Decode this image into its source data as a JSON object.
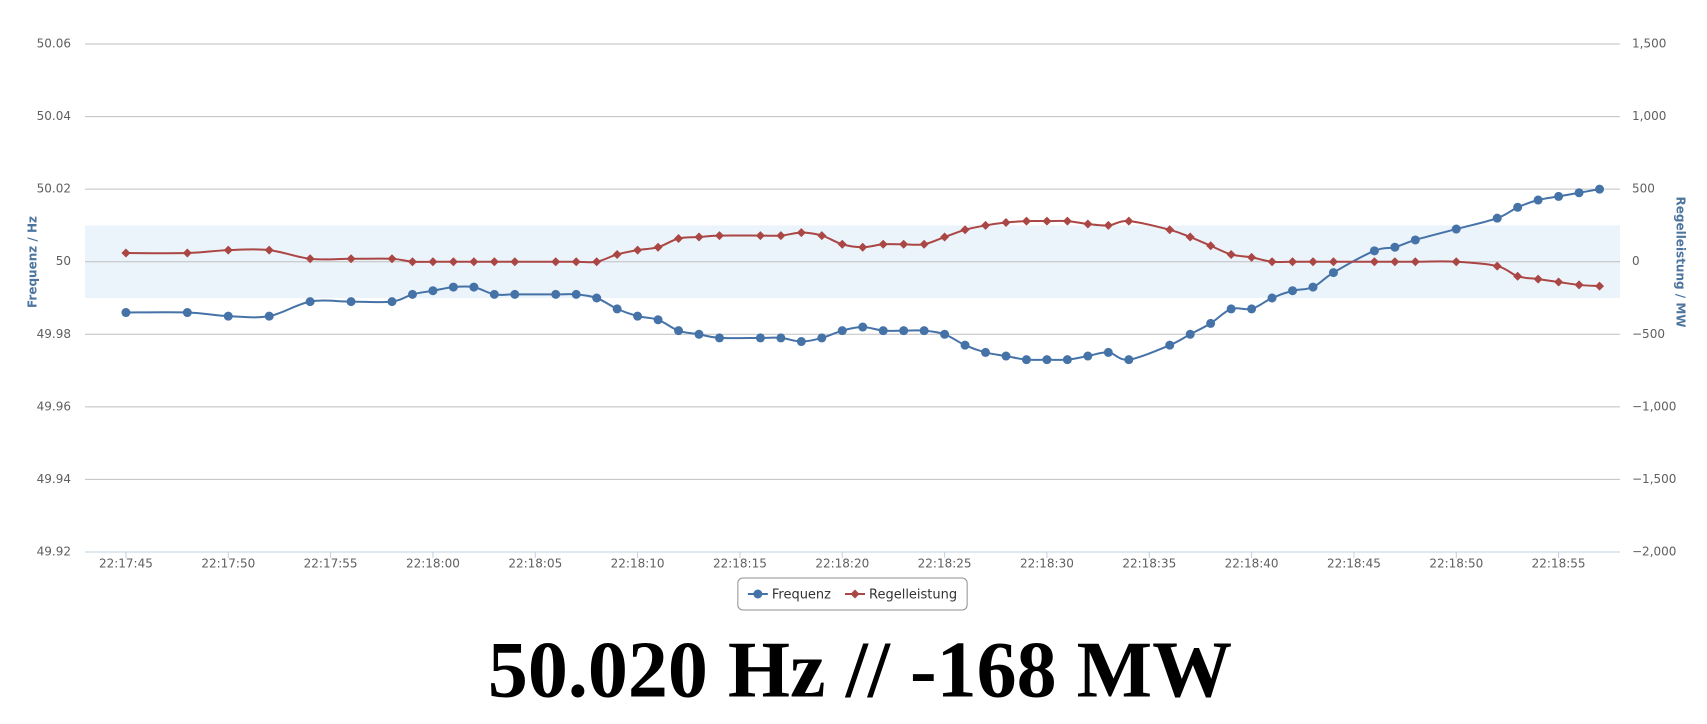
{
  "chart_data": {
    "type": "line",
    "title": "50.020 Hz // -168 MW",
    "y_label": "Frequenz / Hz",
    "y2_label": "Regelleistung / MW",
    "x": [
      "22:17:45",
      "22:17:48",
      "22:17:50",
      "22:17:52",
      "22:17:54",
      "22:17:56",
      "22:17:58",
      "22:17:59",
      "22:18:00",
      "22:18:01",
      "22:18:02",
      "22:18:03",
      "22:18:04",
      "22:18:06",
      "22:18:07",
      "22:18:08",
      "22:18:09",
      "22:18:10",
      "22:18:11",
      "22:18:12",
      "22:18:13",
      "22:18:14",
      "22:18:16",
      "22:18:17",
      "22:18:18",
      "22:18:19",
      "22:18:20",
      "22:18:21",
      "22:18:22",
      "22:18:23",
      "22:18:24",
      "22:18:25",
      "22:18:26",
      "22:18:27",
      "22:18:28",
      "22:18:29",
      "22:18:30",
      "22:18:31",
      "22:18:32",
      "22:18:33",
      "22:18:34",
      "22:18:36",
      "22:18:37",
      "22:18:38",
      "22:18:39",
      "22:18:40",
      "22:18:41",
      "22:18:42",
      "22:18:43",
      "22:18:44",
      "22:18:46",
      "22:18:47",
      "22:18:48",
      "22:18:50",
      "22:18:52",
      "22:18:53",
      "22:18:54",
      "22:18:55",
      "22:18:56",
      "22:18:57"
    ],
    "series": [
      {
        "name": "Frequenz",
        "color": "#4572a7",
        "marker": "circle",
        "values": [
          49.986,
          49.986,
          49.985,
          49.985,
          49.989,
          49.989,
          49.989,
          49.991,
          49.992,
          49.993,
          49.993,
          49.991,
          49.991,
          49.991,
          49.991,
          49.99,
          49.987,
          49.985,
          49.984,
          49.981,
          49.98,
          49.979,
          49.979,
          49.979,
          49.978,
          49.979,
          49.981,
          49.982,
          49.981,
          49.981,
          49.981,
          49.98,
          49.977,
          49.975,
          49.974,
          49.973,
          49.973,
          49.973,
          49.974,
          49.975,
          49.973,
          49.977,
          49.98,
          49.983,
          49.987,
          49.987,
          49.99,
          49.992,
          49.993,
          49.997,
          50.003,
          50.004,
          50.006,
          50.009,
          50.012,
          50.015,
          50.017,
          50.018,
          50.019,
          50.02
        ]
      },
      {
        "name": "Regelleistung",
        "color": "#aa4643",
        "marker": "diamond",
        "axis": "y2",
        "values": [
          60,
          60,
          80,
          80,
          20,
          20,
          20,
          0,
          0,
          0,
          0,
          0,
          0,
          0,
          0,
          0,
          50,
          80,
          100,
          160,
          170,
          180,
          180,
          180,
          200,
          180,
          120,
          100,
          120,
          120,
          120,
          170,
          220,
          250,
          270,
          280,
          280,
          280,
          260,
          250,
          280,
          220,
          170,
          110,
          50,
          30,
          0,
          0,
          0,
          0,
          0,
          0,
          0,
          0,
          -30,
          -100,
          -120,
          -140,
          -160,
          -168
        ]
      }
    ],
    "xlim": [
      "22:17:43",
      "22:18:58"
    ],
    "xticks": [
      "22:17:45",
      "22:17:50",
      "22:17:55",
      "22:18:00",
      "22:18:05",
      "22:18:10",
      "22:18:15",
      "22:18:20",
      "22:18:25",
      "22:18:30",
      "22:18:35",
      "22:18:40",
      "22:18:45",
      "22:18:50",
      "22:18:55"
    ],
    "ylim": [
      49.92,
      50.06
    ],
    "yticks": [
      49.92,
      49.94,
      49.96,
      49.98,
      50,
      50.02,
      50.04,
      50.06
    ],
    "y2lim": [
      -2000,
      1500
    ],
    "y2ticks": [
      {
        "value": -2000,
        "label": "−2,000"
      },
      {
        "value": -1500,
        "label": "−1,500"
      },
      {
        "value": -1000,
        "label": "−1,000"
      },
      {
        "value": -500,
        "label": "−500"
      },
      0,
      500,
      {
        "value": 1000,
        "label": "1,000"
      },
      {
        "value": 1500,
        "label": "1,500"
      }
    ],
    "band": [
      49.99,
      50.01
    ],
    "band_color": "#ebf3fb",
    "grid": true,
    "legend": "bottom"
  }
}
